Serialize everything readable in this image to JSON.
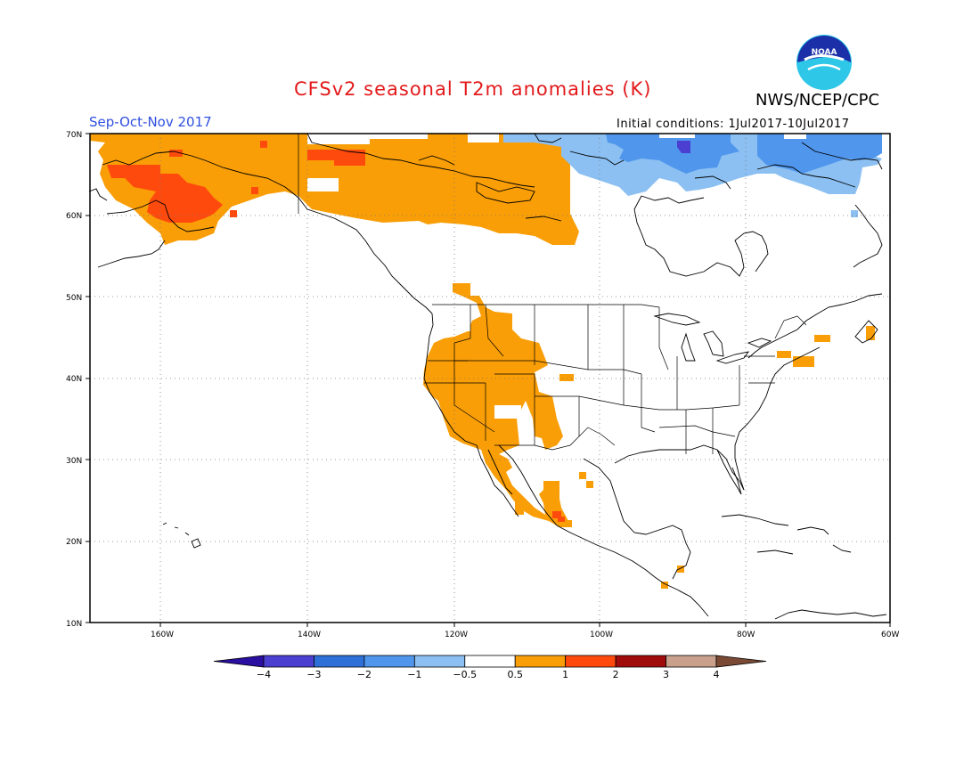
{
  "title": "CFSv2 seasonal T2m anomalies (K)",
  "org": "NWS/NCEP/CPC",
  "logo_text": "NOAA",
  "season": "Sep-Oct-Nov 2017",
  "initial_conditions": "Initial conditions: 1Jul2017-10Jul2017",
  "map": {
    "lat_labels": [
      "70N",
      "60N",
      "50N",
      "40N",
      "30N",
      "20N",
      "10N"
    ],
    "lon_labels": [
      "160W",
      "140W",
      "120W",
      "100W",
      "80W",
      "60W"
    ]
  },
  "colorbar": {
    "colors": [
      "#2a0fa0",
      "#4a3fd0",
      "#2e6fd8",
      "#4f96ec",
      "#8cc0f2",
      "#ffffff",
      "#f99e07",
      "#ff4a0e",
      "#a00c0c",
      "#c8a08c",
      "#7a4a35"
    ],
    "labels": [
      "-4",
      "-3",
      "-2",
      "-1",
      "-0.5",
      "0.5",
      "1",
      "2",
      "3",
      "4"
    ]
  },
  "colors": {
    "warm_05_1": "#f99e07",
    "warm_1_2": "#ff4a0e",
    "cool_05_1": "#8cc0f2",
    "cool_1_2": "#4f96ec",
    "cool_2_3": "#2e6fd8",
    "cool_3_4": "#4a3fd0"
  }
}
